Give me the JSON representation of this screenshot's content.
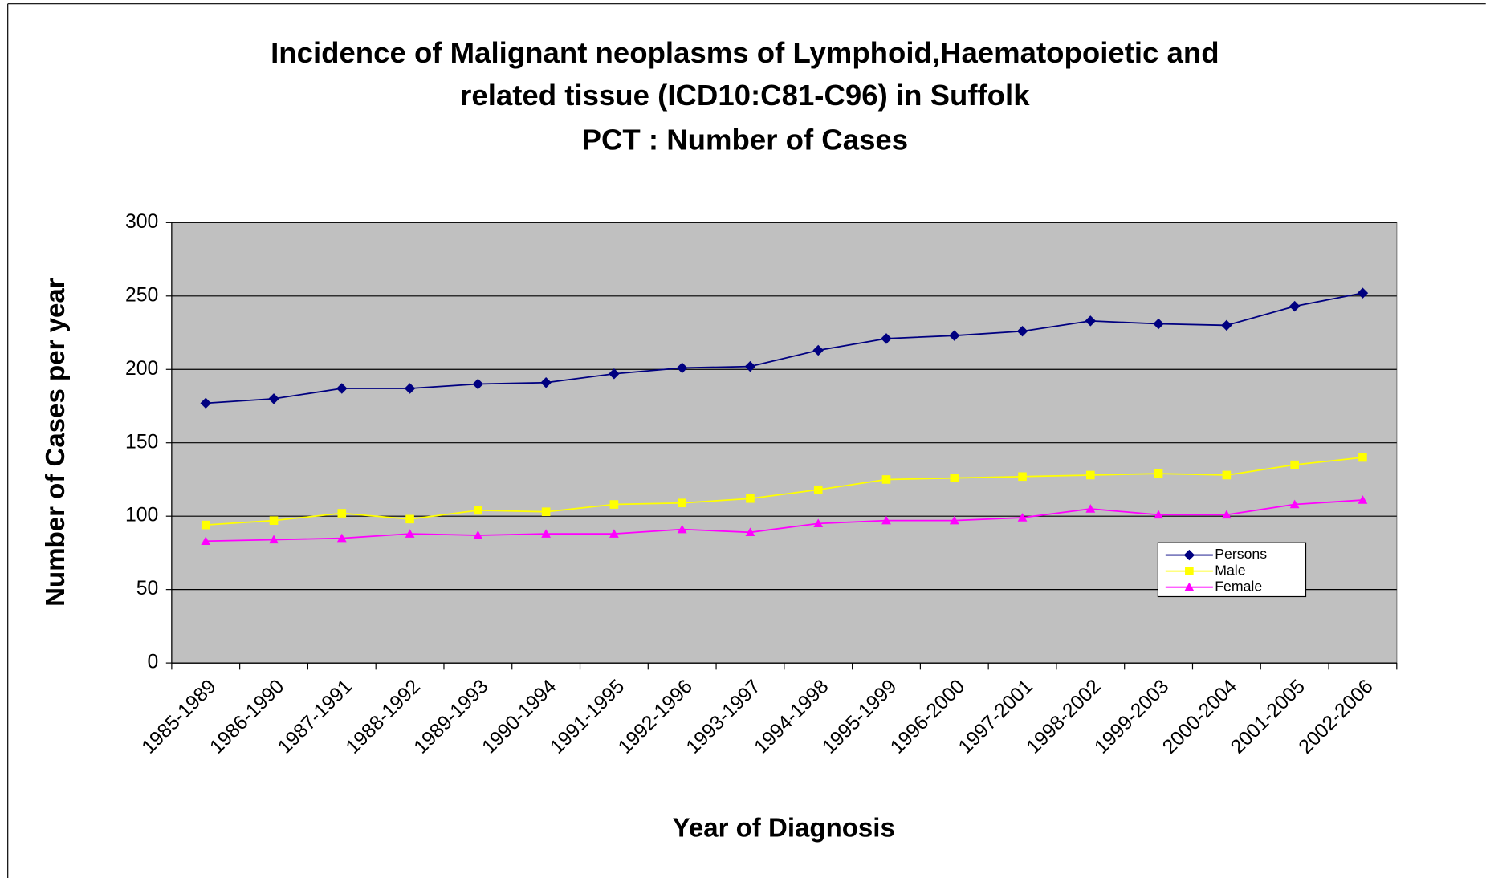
{
  "chart_data": {
    "type": "line",
    "title": [
      "Incidence of Malignant neoplasms of Lymphoid,Haematopoietic and",
      "related tissue (ICD10:C81-C96) in Suffolk",
      "PCT : Number of Cases"
    ],
    "x_label": "Year of Diagnosis",
    "y_label": "Number of Cases per year",
    "categories": [
      "1985-1989",
      "1986-1990",
      "1987-1991",
      "1988-1992",
      "1989-1993",
      "1990-1994",
      "1991-1995",
      "1992-1996",
      "1993-1997",
      "1994-1998",
      "1995-1999",
      "1996-2000",
      "1997-2001",
      "1998-2002",
      "1999-2003",
      "2000-2004",
      "2001-2005",
      "2002-2006"
    ],
    "series": [
      {
        "name": "Persons",
        "color": "#000080",
        "marker": "diamond",
        "values": [
          177,
          180,
          187,
          187,
          190,
          191,
          197,
          201,
          202,
          213,
          221,
          223,
          226,
          233,
          231,
          230,
          243,
          252
        ]
      },
      {
        "name": "Male",
        "color": "#ffff00",
        "marker": "square",
        "values": [
          94,
          97,
          102,
          98,
          104,
          103,
          108,
          109,
          112,
          118,
          125,
          126,
          127,
          128,
          129,
          128,
          135,
          140
        ]
      },
      {
        "name": "Female",
        "color": "#ff00ff",
        "marker": "triangle",
        "values": [
          83,
          84,
          85,
          88,
          87,
          88,
          88,
          91,
          89,
          95,
          97,
          97,
          99,
          105,
          101,
          101,
          108,
          111
        ]
      }
    ],
    "ylim": [
      0,
      300
    ],
    "yticks": [
      0,
      50,
      100,
      150,
      200,
      250,
      300
    ],
    "grid": true,
    "plot_background": "#c0c0c0",
    "legend": "right"
  }
}
